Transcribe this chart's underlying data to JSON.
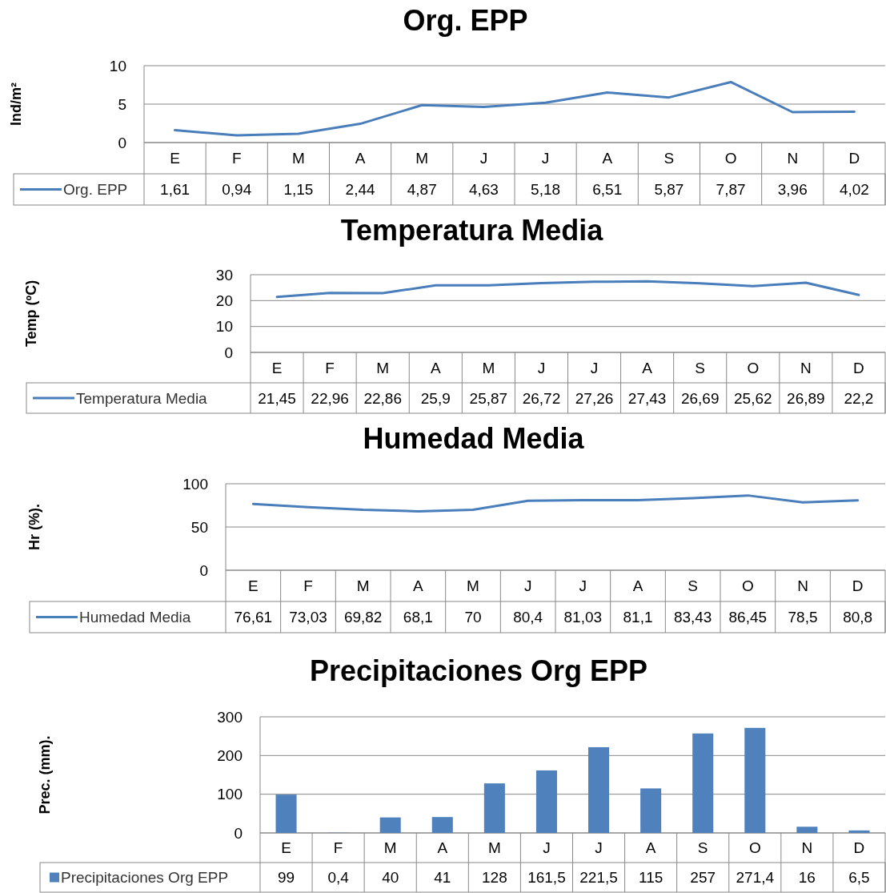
{
  "chart_data": [
    {
      "type": "line",
      "title": "Org. EPP",
      "ylabel": "Ind/m²",
      "categories": [
        "E",
        "F",
        "M",
        "A",
        "M",
        "J",
        "J",
        "A",
        "S",
        "O",
        "N",
        "D"
      ],
      "ylim": [
        0,
        10
      ],
      "yticks": [
        0,
        5,
        10
      ],
      "grid": "y",
      "legend": "bottom",
      "series": [
        {
          "name": "Org. EPP",
          "color": "#4a7ebb",
          "values": [
            1.61,
            0.94,
            1.15,
            2.44,
            4.87,
            4.63,
            5.18,
            6.51,
            5.87,
            7.87,
            3.96,
            4.02
          ],
          "value_labels": [
            "1,61",
            "0,94",
            "1,15",
            "2,44",
            "4,87",
            "4,63",
            "5,18",
            "6,51",
            "5,87",
            "7,87",
            "3,96",
            "4,02"
          ]
        }
      ]
    },
    {
      "type": "line",
      "title": "Temperatura Media",
      "ylabel": "Temp (ºC)",
      "categories": [
        "E",
        "F",
        "M",
        "A",
        "M",
        "J",
        "J",
        "A",
        "S",
        "O",
        "N",
        "D"
      ],
      "ylim": [
        0,
        30
      ],
      "yticks": [
        0,
        10,
        20,
        30
      ],
      "grid": "y",
      "legend": "bottom",
      "series": [
        {
          "name": "Temperatura Media",
          "color": "#4a7ebb",
          "values": [
            21.45,
            22.96,
            22.86,
            25.9,
            25.87,
            26.72,
            27.26,
            27.43,
            26.69,
            25.62,
            26.89,
            22.2
          ],
          "value_labels": [
            "21,45",
            "22,96",
            "22,86",
            "25,9",
            "25,87",
            "26,72",
            "27,26",
            "27,43",
            "26,69",
            "25,62",
            "26,89",
            "22,2"
          ]
        }
      ]
    },
    {
      "type": "line",
      "title": "Humedad Media",
      "ylabel": "Hr (%).",
      "categories": [
        "E",
        "F",
        "M",
        "A",
        "M",
        "J",
        "J",
        "A",
        "S",
        "O",
        "N",
        "D"
      ],
      "ylim": [
        0,
        100
      ],
      "yticks": [
        0,
        50,
        100
      ],
      "grid": "y",
      "legend": "bottom",
      "series": [
        {
          "name": "Humedad Media",
          "color": "#4a7ebb",
          "values": [
            76.61,
            73.03,
            69.82,
            68.1,
            70,
            80.4,
            81.03,
            81.1,
            83.43,
            86.45,
            78.5,
            80.8
          ],
          "value_labels": [
            "76,61",
            "73,03",
            "69,82",
            "68,1",
            "70",
            "80,4",
            "81,03",
            "81,1",
            "83,43",
            "86,45",
            "78,5",
            "80,8"
          ]
        }
      ]
    },
    {
      "type": "bar",
      "title": "Precipitaciones Org EPP",
      "ylabel": "Prec. (mm).",
      "categories": [
        "E",
        "F",
        "M",
        "A",
        "M",
        "J",
        "J",
        "A",
        "S",
        "O",
        "N",
        "D"
      ],
      "ylim": [
        0,
        300
      ],
      "yticks": [
        0,
        100,
        200,
        300
      ],
      "grid": "y",
      "legend": "bottom",
      "series": [
        {
          "name": "Precipitaciones Org EPP",
          "color": "#4f81bd",
          "values": [
            99,
            0.4,
            40,
            41,
            128,
            161.5,
            221.5,
            115,
            257,
            271.4,
            16,
            6.5
          ],
          "value_labels": [
            "99",
            "0,4",
            "40",
            "41",
            "128",
            "161,5",
            "221,5",
            "115",
            "257",
            "271,4",
            "16",
            "6,5"
          ]
        }
      ]
    }
  ]
}
